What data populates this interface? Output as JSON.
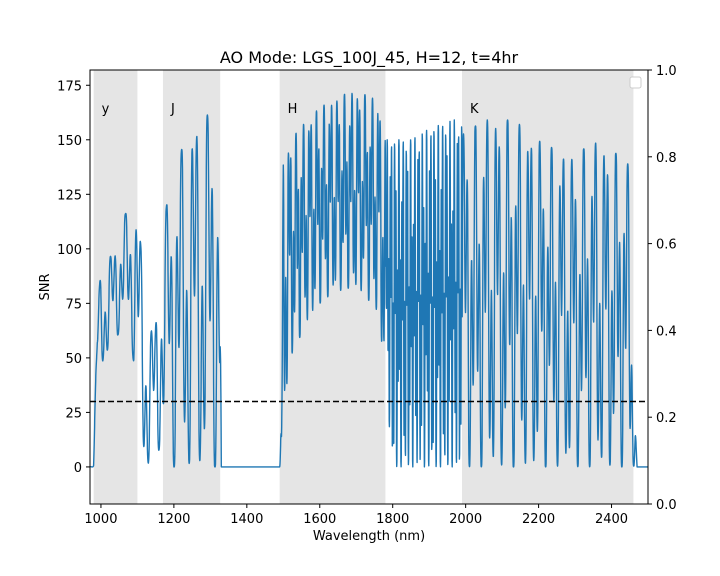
{
  "chart_data": {
    "type": "line",
    "title": "AO Mode: LGS_100J_45, H=12, t=4hr",
    "xlabel": "Wavelength (nm)",
    "ylabel": "SNR",
    "xlim": [
      970,
      2500
    ],
    "ylim": [
      -17,
      182
    ],
    "y2lim": [
      0.0,
      1.0
    ],
    "xticks": [
      1000,
      1200,
      1400,
      1600,
      1800,
      2000,
      2200,
      2400
    ],
    "yticks": [
      0,
      25,
      50,
      75,
      100,
      125,
      150,
      175
    ],
    "y2ticks": [
      "0.0",
      "0.2",
      "0.4",
      "0.6",
      "0.8",
      "1.0"
    ],
    "grid": false,
    "legend": "top-right (empty)",
    "series_color": "#1f77b4",
    "band_color": "#e5e5e5",
    "threshold": {
      "y": 30,
      "style": "dashed",
      "color": "#000000"
    },
    "bands": [
      {
        "label": "y",
        "start": 980,
        "end": 1100
      },
      {
        "label": "J",
        "start": 1170,
        "end": 1327
      },
      {
        "label": "H",
        "start": 1490,
        "end": 1780
      },
      {
        "label": "K",
        "start": 1990,
        "end": 2460
      }
    ],
    "envelope": {
      "x": [
        970,
        980,
        990,
        1000,
        1030,
        1060,
        1080,
        1100,
        1110,
        1120,
        1130,
        1150,
        1170,
        1180,
        1200,
        1230,
        1260,
        1290,
        1310,
        1327,
        1330,
        1490,
        1495,
        1500,
        1520,
        1560,
        1600,
        1640,
        1680,
        1720,
        1760,
        1780,
        1800,
        1850,
        1900,
        1950,
        1980,
        2000,
        2050,
        2100,
        2150,
        2200,
        2250,
        2300,
        2350,
        2400,
        2430,
        2450,
        2460,
        2470,
        2500
      ],
      "upper": [
        0,
        2,
        75,
        90,
        98,
        115,
        118,
        124,
        100,
        80,
        60,
        70,
        105,
        120,
        135,
        150,
        158,
        162,
        160,
        150,
        0,
        0,
        25,
        140,
        150,
        158,
        165,
        168,
        172,
        171,
        168,
        150,
        150,
        150,
        155,
        158,
        160,
        152,
        160,
        160,
        157,
        150,
        145,
        142,
        150,
        145,
        142,
        138,
        40,
        0,
        0
      ],
      "lower": [
        0,
        0,
        40,
        45,
        55,
        65,
        60,
        35,
        10,
        0,
        0,
        5,
        10,
        30,
        0,
        0,
        0,
        0,
        0,
        0,
        0,
        0,
        0,
        20,
        50,
        65,
        75,
        80,
        82,
        80,
        70,
        40,
        0,
        0,
        0,
        0,
        0,
        0,
        0,
        0,
        0,
        0,
        0,
        0,
        0,
        0,
        0,
        0,
        0,
        0,
        0
      ]
    }
  }
}
